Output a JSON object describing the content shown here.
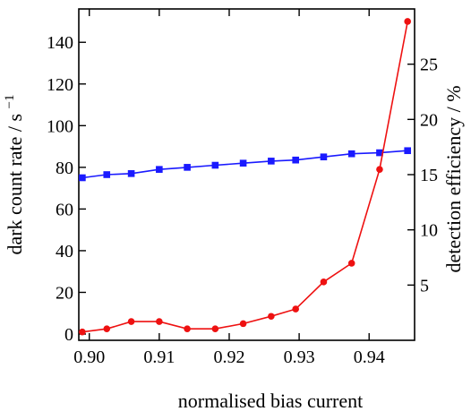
{
  "chart_data": {
    "type": "line",
    "xlabel": "normalised bias current",
    "ylabel_left": "dark count rate / s",
    "ylabel_left_exponent": "−1",
    "ylabel_right": "detection efficiency / %",
    "xlim": [
      0.8985,
      0.9465
    ],
    "ylim_left": [
      -3,
      156
    ],
    "ylim_right": [
      0,
      30
    ],
    "x_ticks": [
      0.9,
      0.91,
      0.92,
      0.93,
      0.94
    ],
    "x_tick_labels": [
      "0.90",
      "0.91",
      "0.92",
      "0.93",
      "0.94"
    ],
    "y_left_ticks": [
      0,
      20,
      40,
      60,
      80,
      100,
      120,
      140
    ],
    "y_left_tick_labels": [
      "0",
      "20",
      "40",
      "60",
      "80",
      "100",
      "120",
      "140"
    ],
    "y_right_ticks": [
      5,
      10,
      15,
      20,
      25
    ],
    "y_right_tick_labels": [
      "5",
      "10",
      "15",
      "20",
      "25"
    ],
    "grid": false,
    "legend": "none",
    "series": [
      {
        "axis": "left",
        "color": "#1a1aff",
        "marker": "square",
        "x": [
          0.899,
          0.9025,
          0.906,
          0.91,
          0.914,
          0.918,
          0.922,
          0.926,
          0.9295,
          0.9335,
          0.9375,
          0.9415,
          0.9455
        ],
        "y": [
          75,
          76.5,
          77,
          79,
          80,
          81,
          82,
          83,
          83.5,
          85,
          86.5,
          87,
          88
        ]
      },
      {
        "axis": "left",
        "color": "#ee1111",
        "marker": "circle",
        "x": [
          0.899,
          0.9025,
          0.906,
          0.91,
          0.914,
          0.918,
          0.922,
          0.926,
          0.9295,
          0.9335,
          0.9375,
          0.9415,
          0.9455
        ],
        "y": [
          1,
          2.5,
          6,
          6,
          2.5,
          2.5,
          5,
          8.5,
          12,
          25,
          34,
          79,
          150
        ]
      }
    ]
  }
}
